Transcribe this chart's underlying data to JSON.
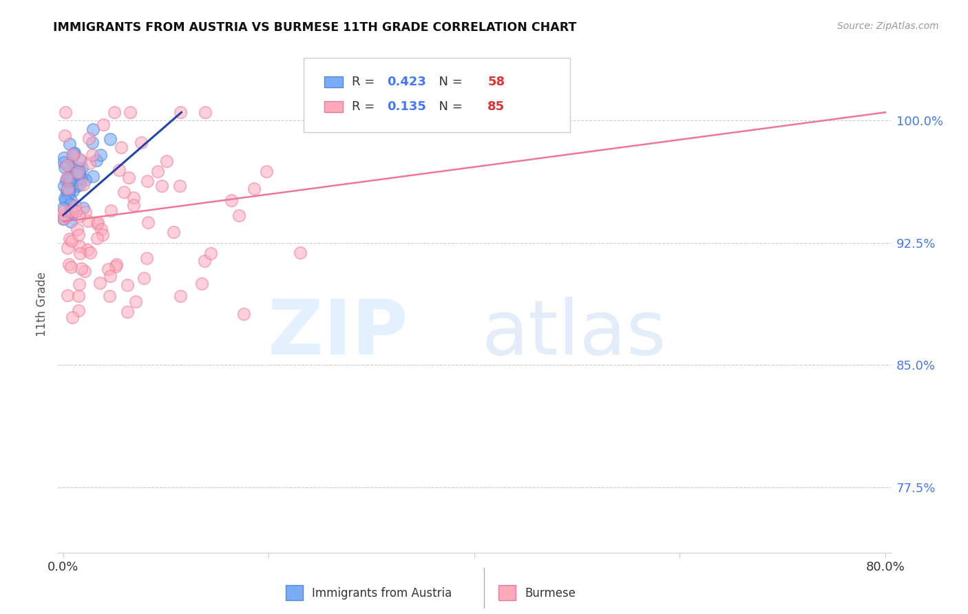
{
  "title": "IMMIGRANTS FROM AUSTRIA VS BURMESE 11TH GRADE CORRELATION CHART",
  "source": "Source: ZipAtlas.com",
  "ylabel": "11th Grade",
  "watermark_zip": "ZIP",
  "watermark_atlas": "atlas",
  "xlim": [
    0.0,
    0.8
  ],
  "ylim": [
    0.735,
    1.04
  ],
  "ytick_vals": [
    0.775,
    0.85,
    0.925,
    1.0
  ],
  "ytick_labels": [
    "77.5%",
    "85.0%",
    "92.5%",
    "100.0%"
  ],
  "series1": {
    "name": "Immigrants from Austria",
    "R": 0.423,
    "N": 58,
    "color": "#7aabf7",
    "edge_color": "#5588dd",
    "line_color": "#2244aa",
    "trend_x0": 0.0,
    "trend_x1": 0.115,
    "trend_y0": 0.942,
    "trend_y1": 1.005
  },
  "series2": {
    "name": "Burmese",
    "R": 0.135,
    "N": 85,
    "color": "#ffaabb",
    "edge_color": "#ee7799",
    "line_color": "#ee7799",
    "trend_x0": 0.0,
    "trend_x1": 0.8,
    "trend_y0": 0.938,
    "trend_y1": 1.005
  },
  "legend_R_color": "#4477ff",
  "legend_N_color": "#dd3333",
  "bg_color": "#ffffff",
  "grid_color": "#cccccc",
  "source_color": "#999999",
  "title_color": "#111111",
  "ylabel_color": "#555555",
  "xtick_label_left": "0.0%",
  "xtick_label_right": "80.0%"
}
